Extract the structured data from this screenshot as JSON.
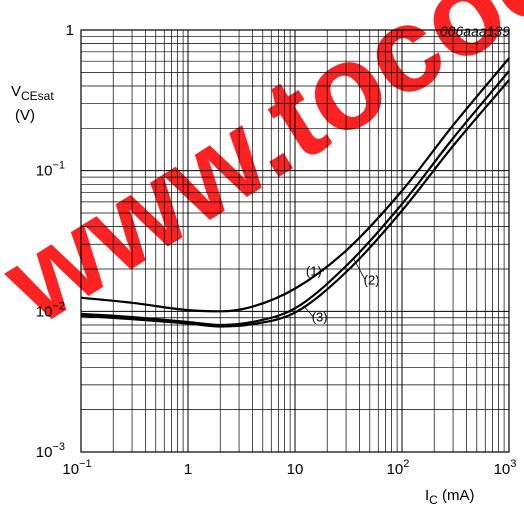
{
  "figure_ref": "006aaa139",
  "watermark": "www.tocoo",
  "chart_data": {
    "type": "line",
    "x_scale": "log",
    "y_scale": "log",
    "xlim": [
      0.1,
      1000
    ],
    "ylim": [
      0.001,
      1
    ],
    "grid": true,
    "xlabel": {
      "main": "I",
      "sub": "C",
      "unit": " (mA)"
    },
    "ylabel": {
      "main": "V",
      "sub": "CEsat",
      "unit": "(V)"
    },
    "x_ticks": [
      {
        "value": 0.1,
        "base": "10",
        "exp": "−1"
      },
      {
        "value": 1,
        "base": "1",
        "exp": ""
      },
      {
        "value": 10,
        "base": "10",
        "exp": ""
      },
      {
        "value": 100,
        "base": "10",
        "exp": "2"
      },
      {
        "value": 1000,
        "base": "10",
        "exp": "3"
      }
    ],
    "y_ticks": [
      {
        "value": 1,
        "base": "1",
        "exp": ""
      },
      {
        "value": 0.1,
        "base": "10",
        "exp": "−1"
      },
      {
        "value": 0.01,
        "base": "10",
        "exp": "−2"
      },
      {
        "value": 0.001,
        "base": "10",
        "exp": "−3"
      }
    ],
    "series": [
      {
        "name": "(1)",
        "x": [
          0.1,
          0.3,
          1,
          2,
          4,
          10,
          30,
          100,
          300,
          1000
        ],
        "y": [
          0.0125,
          0.0115,
          0.0102,
          0.01,
          0.0108,
          0.0145,
          0.027,
          0.072,
          0.21,
          0.63
        ]
      },
      {
        "name": "(2)",
        "x": [
          0.1,
          0.3,
          1,
          2,
          4,
          10,
          30,
          100,
          300,
          1000
        ],
        "y": [
          0.0096,
          0.0091,
          0.0084,
          0.008,
          0.0084,
          0.0105,
          0.021,
          0.058,
          0.17,
          0.51
        ]
      },
      {
        "name": "(3)",
        "x": [
          0.1,
          0.3,
          1,
          2,
          4,
          10,
          30,
          100,
          300,
          1000
        ],
        "y": [
          0.0093,
          0.0088,
          0.0082,
          0.0078,
          0.0081,
          0.0098,
          0.019,
          0.052,
          0.15,
          0.44
        ]
      }
    ],
    "annotations": [
      {
        "text": "(1)",
        "series": 0,
        "x": 18,
        "label_x": 15,
        "label_y": 0.018
      },
      {
        "text": "(2)",
        "series": 1,
        "x": 35,
        "label_x": 52,
        "label_y": 0.0155
      },
      {
        "text": "(3)",
        "series": 2,
        "x": 12,
        "label_x": 17,
        "label_y": 0.0085
      }
    ]
  }
}
